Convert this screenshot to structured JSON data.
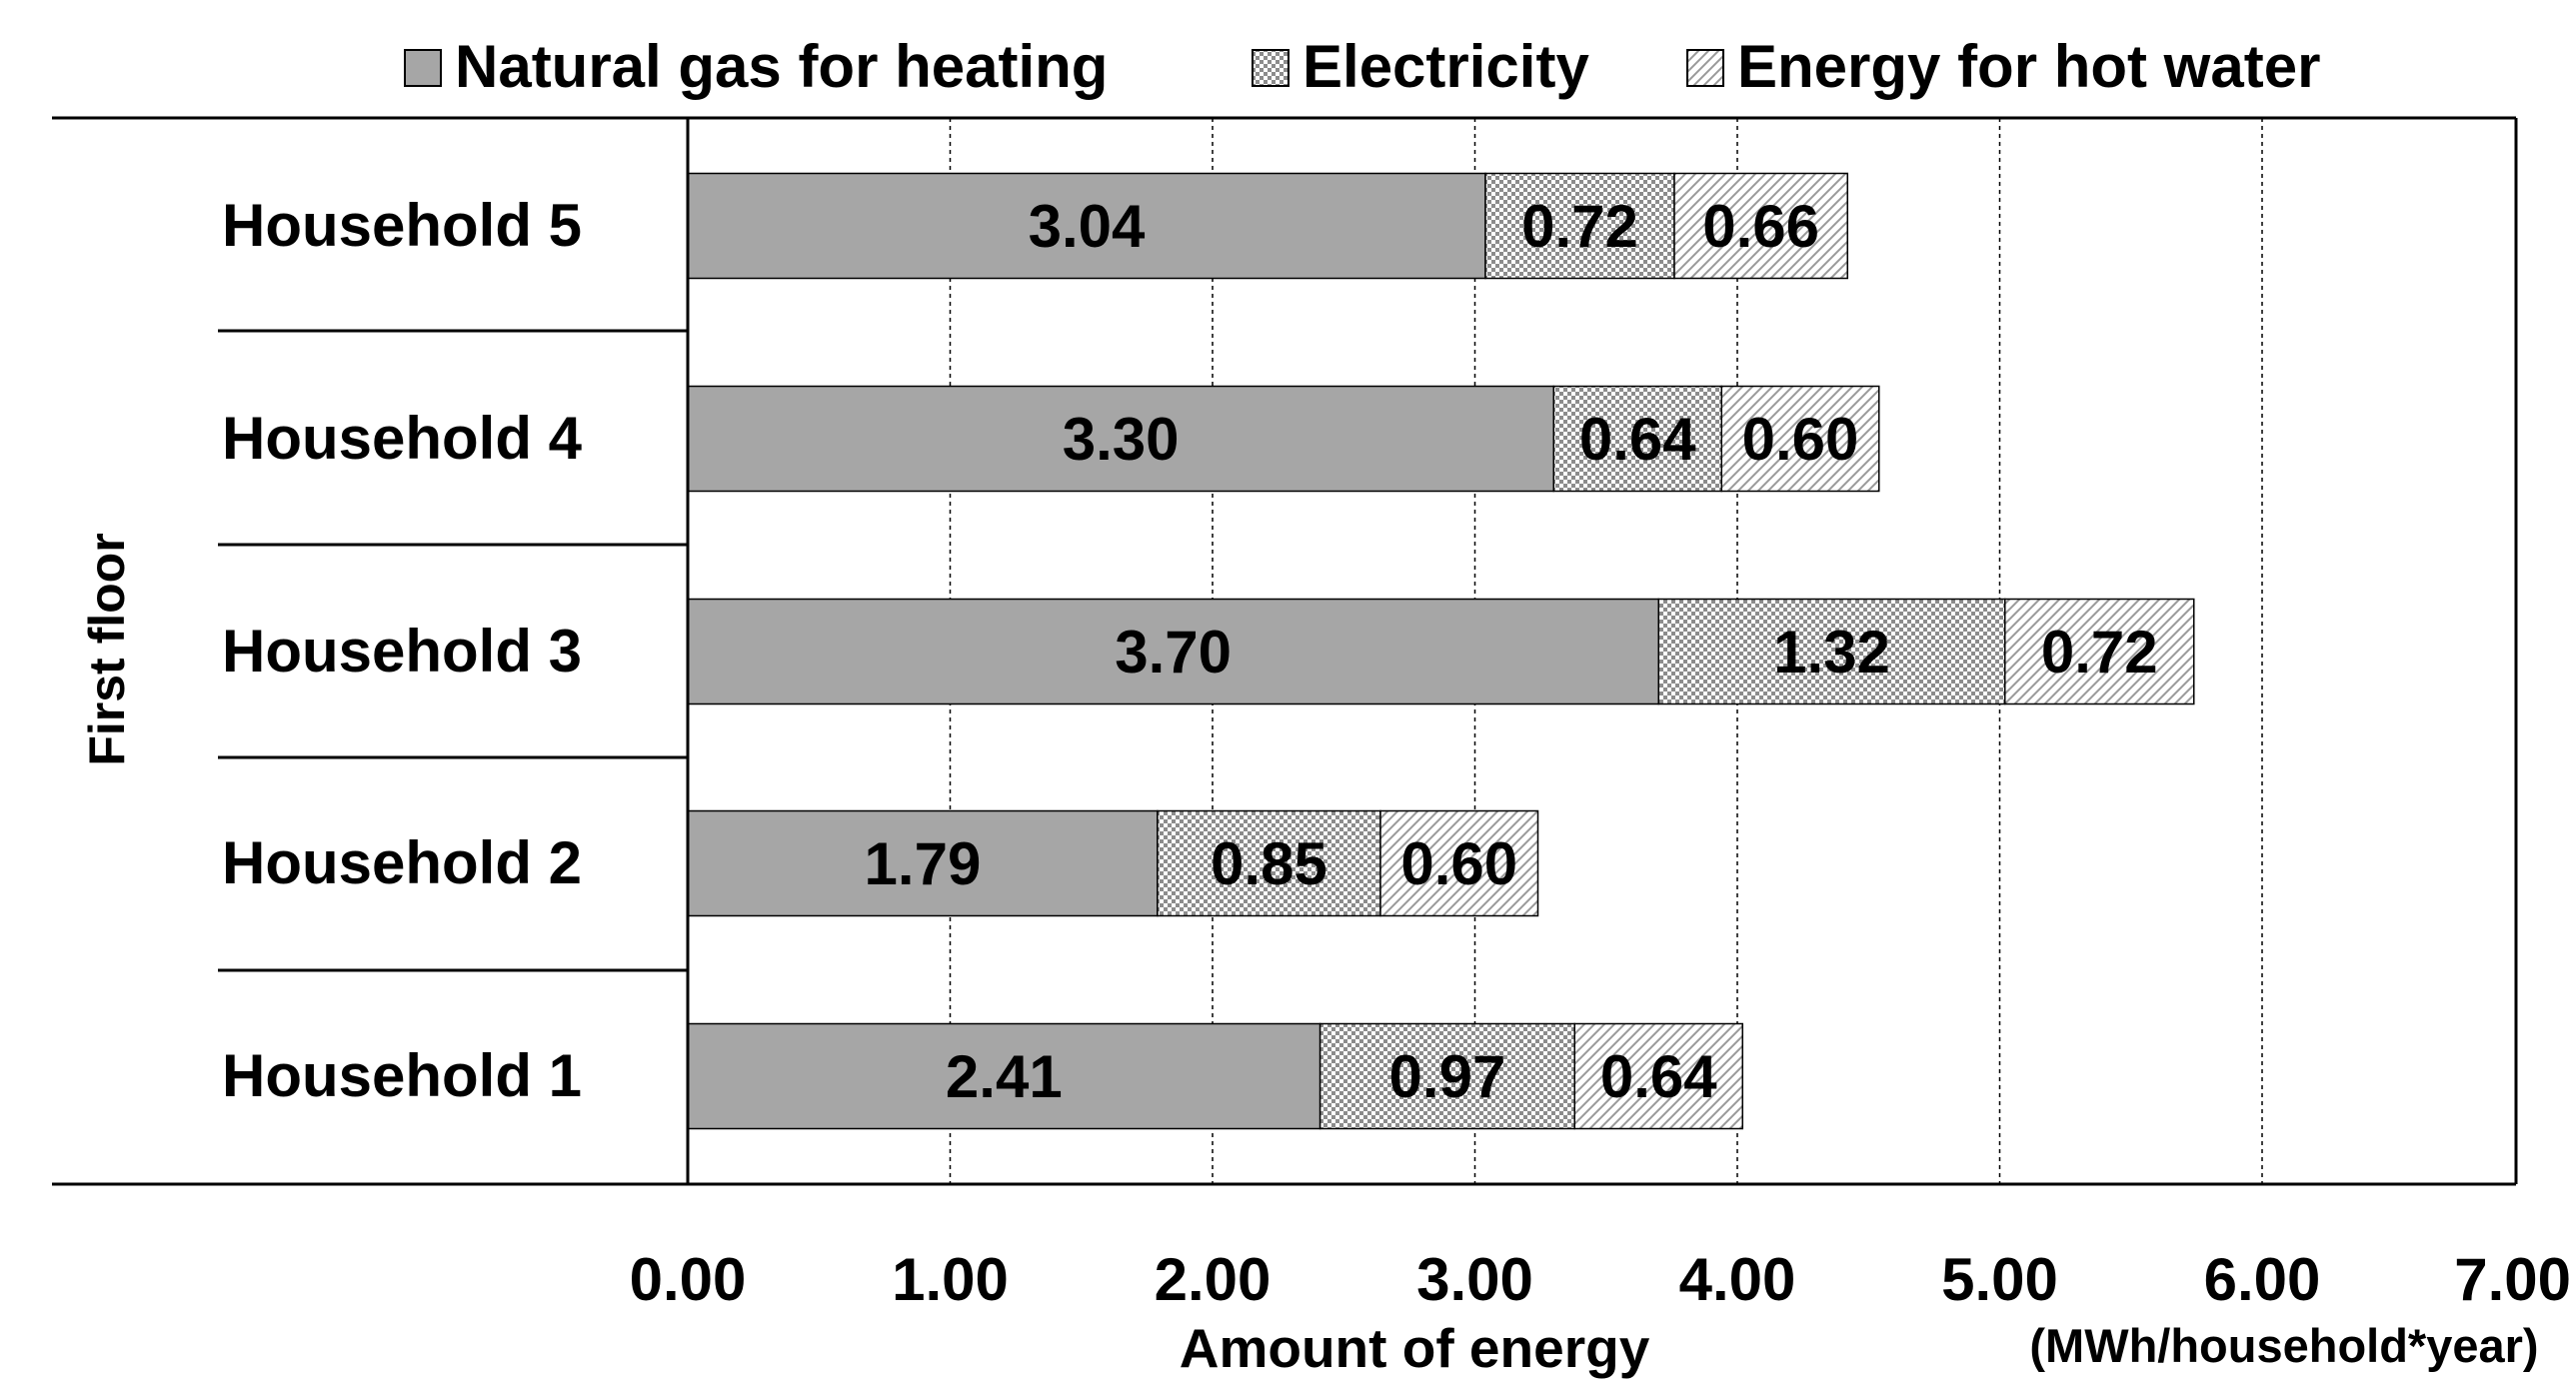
{
  "chart_data": {
    "type": "bar",
    "orientation": "horizontal",
    "stacked": true,
    "group_label": "First floor",
    "categories": [
      "Household 5",
      "Household 4",
      "Household 3",
      "Household 2",
      "Household 1"
    ],
    "series": [
      {
        "name": "Natural gas for heating",
        "values": [
          3.04,
          3.3,
          3.7,
          1.79,
          2.41
        ],
        "labels": [
          "3.04",
          "3.30",
          "3.70",
          "1.79",
          "2.41"
        ],
        "color": "#a6a6a6",
        "pattern": "solid"
      },
      {
        "name": "Electricity",
        "values": [
          0.72,
          0.64,
          1.32,
          0.85,
          0.97
        ],
        "labels": [
          "0.72",
          "0.64",
          "1.32",
          "0.85",
          "0.97"
        ],
        "color": "#bfbfbf",
        "pattern": "checker"
      },
      {
        "name": "Energy for hot water",
        "values": [
          0.66,
          0.6,
          0.72,
          0.6,
          0.64
        ],
        "labels": [
          "0.66",
          "0.60",
          "0.72",
          "0.60",
          "0.64"
        ],
        "color": "#bfbfbf",
        "pattern": "diagonal"
      }
    ],
    "xlim": [
      0,
      7
    ],
    "x_ticks": [
      0,
      1,
      2,
      3,
      4,
      5,
      6,
      7
    ],
    "x_tick_labels": [
      "0.00",
      "1.00",
      "2.00",
      "3.00",
      "4.00",
      "5.00",
      "6.00",
      "7.00"
    ],
    "xlabel": "Amount of energy",
    "xunit": "(MWh/household*year)",
    "grid": "vertical dashed",
    "legend_position": "top"
  }
}
